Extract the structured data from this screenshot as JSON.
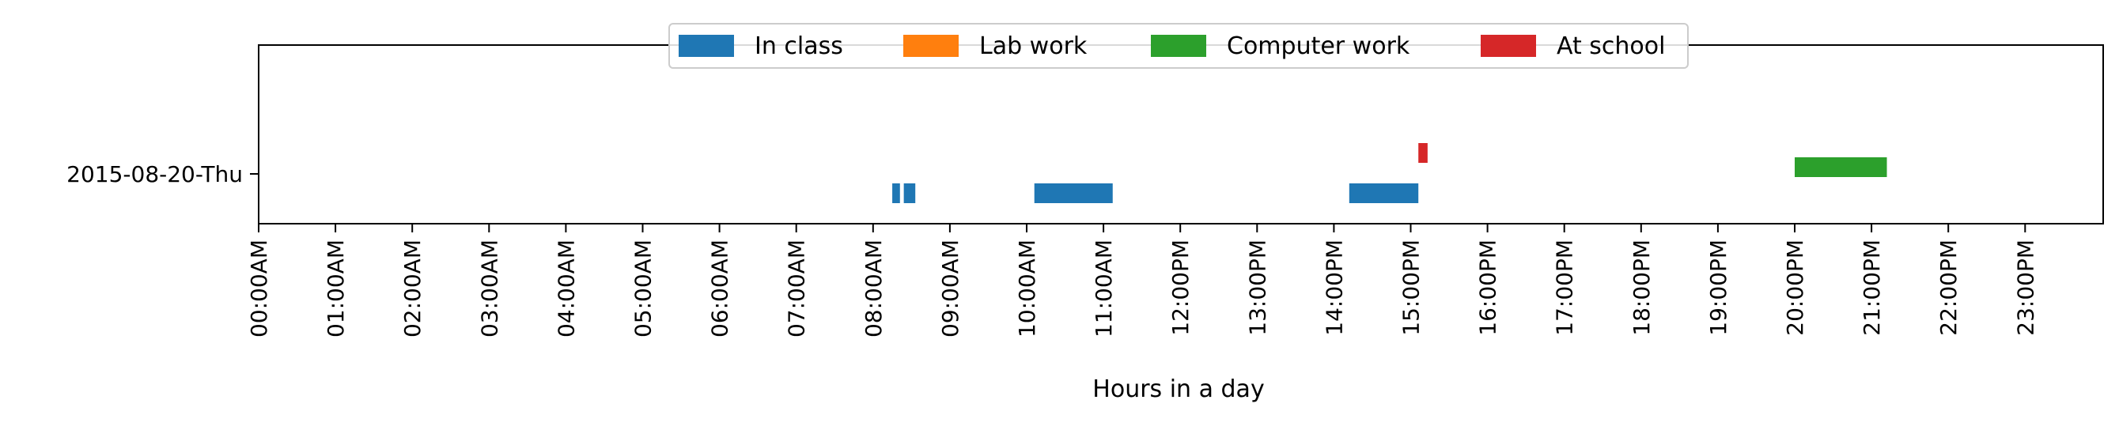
{
  "chart_data": {
    "type": "bar",
    "subtype": "horizontal-timeline",
    "xlabel": "Hours in a day",
    "ylabel": "",
    "xlim": [
      0,
      24
    ],
    "grid": false,
    "legend_placement": "top-center",
    "categories": [
      "2015-08-20-Thu"
    ],
    "x_tick_labels": [
      "00:00AM",
      "01:00AM",
      "02:00AM",
      "03:00AM",
      "04:00AM",
      "05:00AM",
      "06:00AM",
      "07:00AM",
      "08:00AM",
      "09:00AM",
      "10:00AM",
      "11:00AM",
      "12:00PM",
      "13:00PM",
      "14:00PM",
      "15:00PM",
      "16:00PM",
      "17:00PM",
      "18:00PM",
      "19:00PM",
      "20:00PM",
      "21:00PM",
      "22:00PM",
      "23:00PM"
    ],
    "series": [
      {
        "name": "In class",
        "color": "#1f77b4",
        "intervals": [
          [
            8.25,
            8.35
          ],
          [
            8.4,
            8.55
          ],
          [
            10.1,
            11.12
          ],
          [
            14.2,
            15.1
          ]
        ]
      },
      {
        "name": "Lab work",
        "color": "#ff7f0e",
        "intervals": []
      },
      {
        "name": "Computer work",
        "color": "#2ca02c",
        "intervals": [
          [
            20.0,
            21.2
          ]
        ]
      },
      {
        "name": "At school",
        "color": "#d62728",
        "intervals": [
          [
            15.1,
            15.22
          ]
        ]
      }
    ]
  }
}
